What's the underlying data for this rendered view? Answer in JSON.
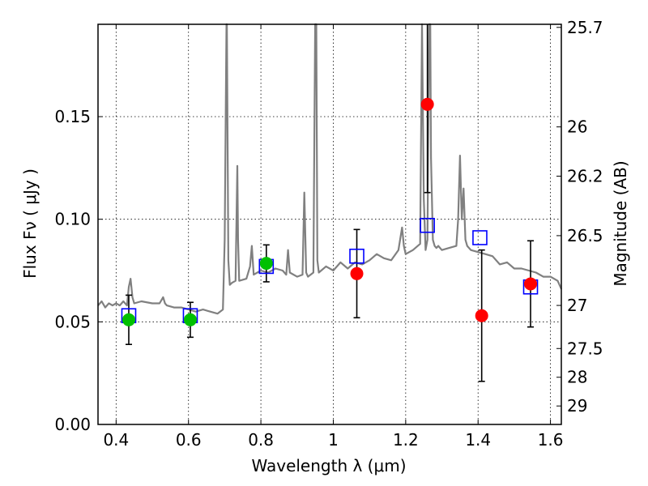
{
  "chart_data": {
    "type": "scatter",
    "xlabel": "Wavelength  λ (μm)",
    "ylabel": "Flux  Fν  ( μJy )",
    "y2label": "Magnitude (AB)",
    "xlim": [
      0.35,
      1.63
    ],
    "ylim": [
      0.0,
      0.195
    ],
    "grid": true,
    "x_ticks": [
      0.4,
      0.6,
      0.8,
      1.0,
      1.2,
      1.4,
      1.6
    ],
    "x_tick_labels": [
      "0.4",
      "0.6",
      "0.8",
      "1",
      "1.2",
      "1.4",
      "1.6"
    ],
    "y_ticks": [
      0.0,
      0.05,
      0.1,
      0.15
    ],
    "y_tick_labels": [
      "0.00",
      "0.05",
      "0.10",
      "0.15"
    ],
    "mag_ticks": [
      {
        "label": "25.7",
        "flux": 0.1935
      },
      {
        "label": "26",
        "flux": 0.145
      },
      {
        "label": "26.2",
        "flux": 0.121
      },
      {
        "label": "26.5",
        "flux": 0.092
      },
      {
        "label": "27",
        "flux": 0.058
      },
      {
        "label": "27.5",
        "flux": 0.037
      },
      {
        "label": "28",
        "flux": 0.023
      },
      {
        "label": "29",
        "flux": 0.009
      }
    ],
    "series": [
      {
        "name": "model spectrum",
        "type": "line",
        "color": "#808080",
        "x": [
          0.35,
          0.36,
          0.37,
          0.38,
          0.39,
          0.4,
          0.41,
          0.42,
          0.43,
          0.435,
          0.44,
          0.445,
          0.45,
          0.47,
          0.5,
          0.52,
          0.53,
          0.535,
          0.54,
          0.56,
          0.58,
          0.6,
          0.62,
          0.64,
          0.66,
          0.68,
          0.695,
          0.7,
          0.705,
          0.706,
          0.71,
          0.714,
          0.72,
          0.73,
          0.735,
          0.737,
          0.74,
          0.76,
          0.77,
          0.775,
          0.78,
          0.8,
          0.82,
          0.84,
          0.86,
          0.87,
          0.875,
          0.88,
          0.9,
          0.915,
          0.92,
          0.925,
          0.93,
          0.945,
          0.95,
          0.953,
          0.956,
          0.96,
          0.98,
          1.0,
          1.02,
          1.04,
          1.06,
          1.08,
          1.1,
          1.12,
          1.14,
          1.16,
          1.18,
          1.19,
          1.195,
          1.2,
          1.22,
          1.24,
          1.245,
          1.25,
          1.255,
          1.26,
          1.265,
          1.268,
          1.27,
          1.275,
          1.28,
          1.285,
          1.29,
          1.3,
          1.32,
          1.34,
          1.345,
          1.35,
          1.355,
          1.36,
          1.365,
          1.37,
          1.38,
          1.4,
          1.42,
          1.44,
          1.46,
          1.48,
          1.5,
          1.52,
          1.54,
          1.56,
          1.58,
          1.6,
          1.62,
          1.63
        ],
        "y": [
          0.058,
          0.06,
          0.057,
          0.059,
          0.058,
          0.059,
          0.058,
          0.06,
          0.058,
          0.067,
          0.071,
          0.062,
          0.059,
          0.06,
          0.059,
          0.059,
          0.062,
          0.059,
          0.058,
          0.057,
          0.057,
          0.056,
          0.055,
          0.056,
          0.055,
          0.054,
          0.056,
          0.09,
          0.195,
          0.195,
          0.08,
          0.068,
          0.069,
          0.07,
          0.126,
          0.09,
          0.07,
          0.071,
          0.077,
          0.087,
          0.073,
          0.075,
          0.074,
          0.076,
          0.075,
          0.073,
          0.085,
          0.074,
          0.072,
          0.073,
          0.113,
          0.074,
          0.072,
          0.074,
          0.195,
          0.195,
          0.08,
          0.074,
          0.077,
          0.075,
          0.079,
          0.076,
          0.079,
          0.078,
          0.08,
          0.083,
          0.081,
          0.08,
          0.085,
          0.096,
          0.087,
          0.083,
          0.085,
          0.088,
          0.195,
          0.11,
          0.085,
          0.09,
          0.195,
          0.195,
          0.13,
          0.09,
          0.087,
          0.086,
          0.087,
          0.085,
          0.086,
          0.087,
          0.1,
          0.131,
          0.1,
          0.115,
          0.09,
          0.087,
          0.085,
          0.084,
          0.083,
          0.082,
          0.078,
          0.079,
          0.076,
          0.076,
          0.075,
          0.074,
          0.072,
          0.072,
          0.07,
          0.066
        ]
      },
      {
        "name": "observed (green)",
        "type": "scatter",
        "color": "#00c000",
        "points": [
          {
            "x": 0.435,
            "y": 0.051,
            "err": 0.012
          },
          {
            "x": 0.605,
            "y": 0.051,
            "err": 0.0085
          },
          {
            "x": 0.815,
            "y": 0.0785,
            "err": 0.009
          }
        ]
      },
      {
        "name": "observed (red)",
        "type": "scatter",
        "color": "#ff0000",
        "points": [
          {
            "x": 1.065,
            "y": 0.0735,
            "err": 0.0215
          },
          {
            "x": 1.26,
            "y": 0.156,
            "err": 0.043
          },
          {
            "x": 1.41,
            "y": 0.053,
            "err": 0.032
          },
          {
            "x": 1.545,
            "y": 0.0685,
            "err": 0.021
          }
        ]
      },
      {
        "name": "model photometry",
        "type": "scatter",
        "color": "#0000ff",
        "marker": "open-square",
        "points": [
          {
            "x": 0.435,
            "y": 0.053
          },
          {
            "x": 0.605,
            "y": 0.053
          },
          {
            "x": 0.815,
            "y": 0.077
          },
          {
            "x": 1.065,
            "y": 0.082
          },
          {
            "x": 1.26,
            "y": 0.097
          },
          {
            "x": 1.405,
            "y": 0.091
          },
          {
            "x": 1.545,
            "y": 0.067
          }
        ]
      }
    ]
  }
}
